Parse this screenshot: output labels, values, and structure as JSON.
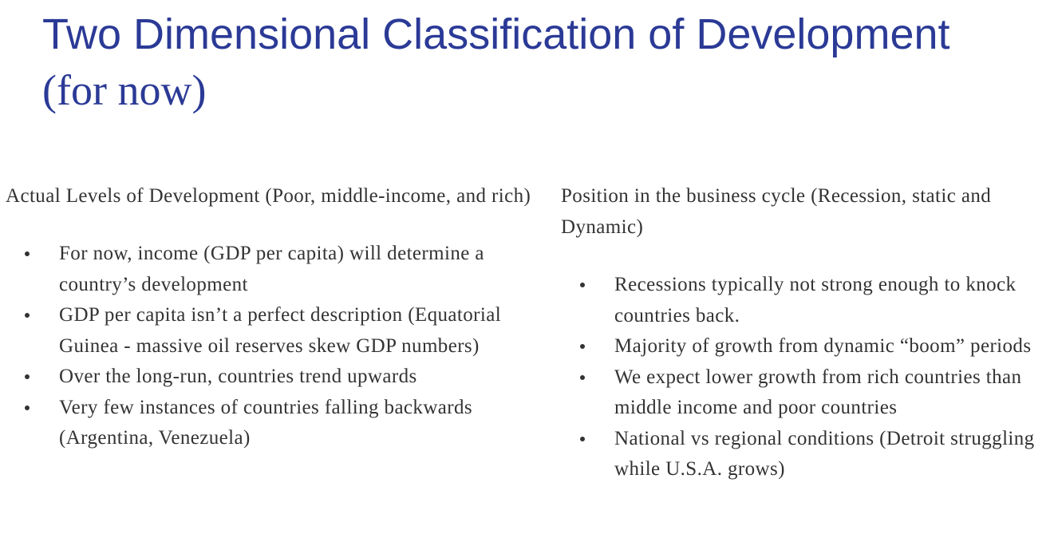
{
  "title": {
    "line1": "Two Dimensional Classification of Development",
    "line2": "(for now)"
  },
  "left_column": {
    "heading": "Actual Levels of Development (Poor, middle-income, and rich)",
    "bullets": [
      "For now, income (GDP per capita) will determine a country’s development",
      "GDP per capita isn’t a perfect description (Equatorial Guinea - massive oil reserves skew GDP numbers)",
      "Over the long-run, countries trend upwards",
      "Very few instances of countries falling backwards (Argentina, Venezuela)"
    ]
  },
  "right_column": {
    "heading": "Position in the business cycle (Recession, static and Dynamic)",
    "bullets": [
      "Recessions typically not strong enough to knock countries back.",
      "Majority of growth from dynamic “boom” periods",
      "We expect lower growth from rich countries than middle income and poor countries",
      "National vs regional conditions (Detroit struggling while U.S.A. grows)"
    ]
  },
  "colors": {
    "title": "#2B3A96",
    "body_text": "#333333",
    "background": "#ffffff"
  },
  "icons": {
    "bullet": "bullet-dot-icon"
  }
}
